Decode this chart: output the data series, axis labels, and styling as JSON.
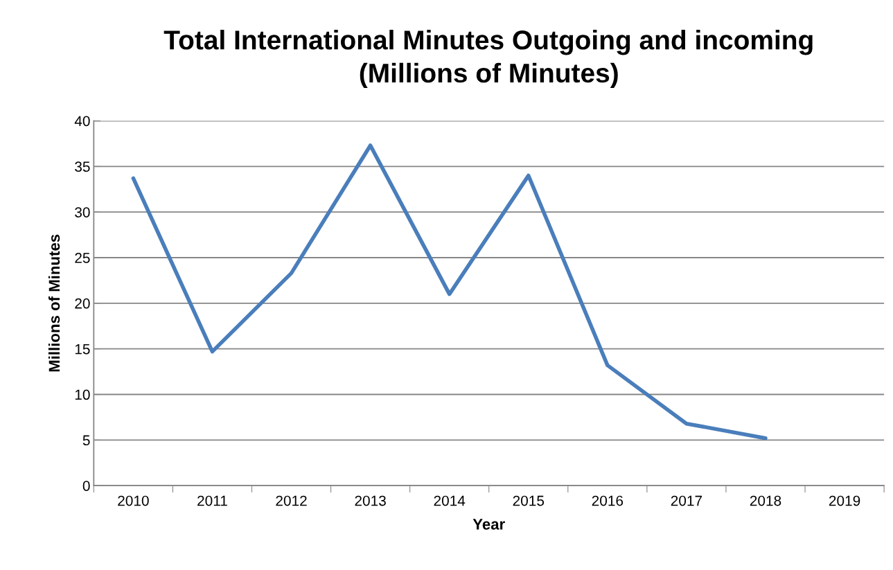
{
  "chart_data": {
    "type": "line",
    "title": "Total International Minutes Outgoing and incoming\n(Millions of Minutes)",
    "xlabel": "Year",
    "ylabel": "Millions of Minutes",
    "categories": [
      "2010",
      "2011",
      "2012",
      "2013",
      "2014",
      "2015",
      "2016",
      "2017",
      "2018",
      "2019"
    ],
    "series": [
      {
        "color": "#4a7ebb",
        "values": [
          33.7,
          14.7,
          23.3,
          37.3,
          21.0,
          34.0,
          13.2,
          6.8,
          5.2,
          null
        ]
      }
    ],
    "ylim": [
      0,
      40
    ],
    "yticks": [
      0,
      5,
      10,
      15,
      20,
      25,
      30,
      35,
      40
    ],
    "grid": "y",
    "legend": false,
    "marker": "none",
    "line_style": "solid"
  }
}
